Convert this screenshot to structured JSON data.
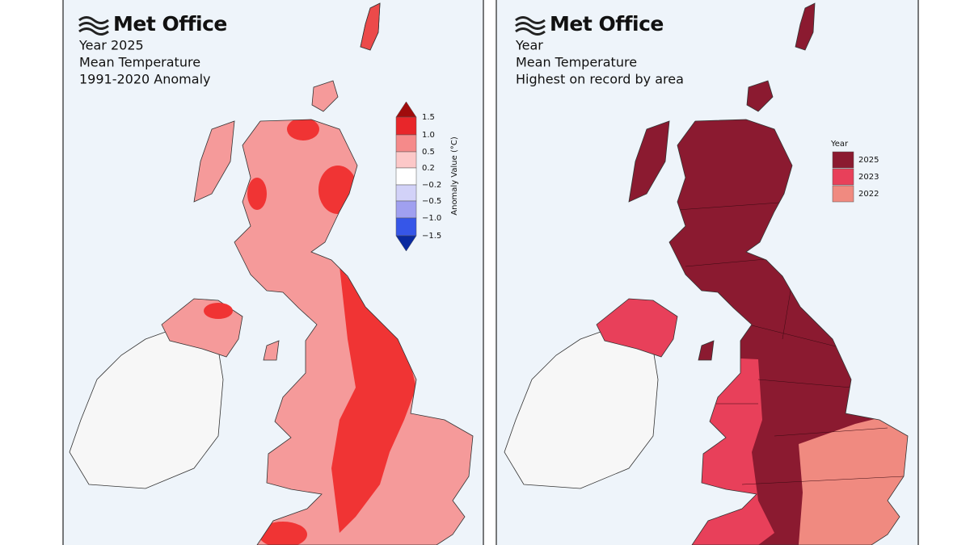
{
  "panels": [
    {
      "brand": "Met Office",
      "title_lines": [
        "Year 2025",
        "Mean Temperature",
        "1991-2020 Anomaly"
      ],
      "legend": {
        "title": "Anomaly Value (°C)",
        "labels": [
          "1.5",
          "1.0",
          "0.5",
          "0.2",
          "−0.2",
          "−0.5",
          "−1.0",
          "−1.5"
        ]
      }
    },
    {
      "brand": "Met Office",
      "title_lines": [
        "Year",
        "Mean Temperature",
        "Highest on record by area"
      ],
      "legend": {
        "title": "Year",
        "labels": [
          "2025",
          "2023",
          "2022"
        ]
      }
    }
  ]
}
